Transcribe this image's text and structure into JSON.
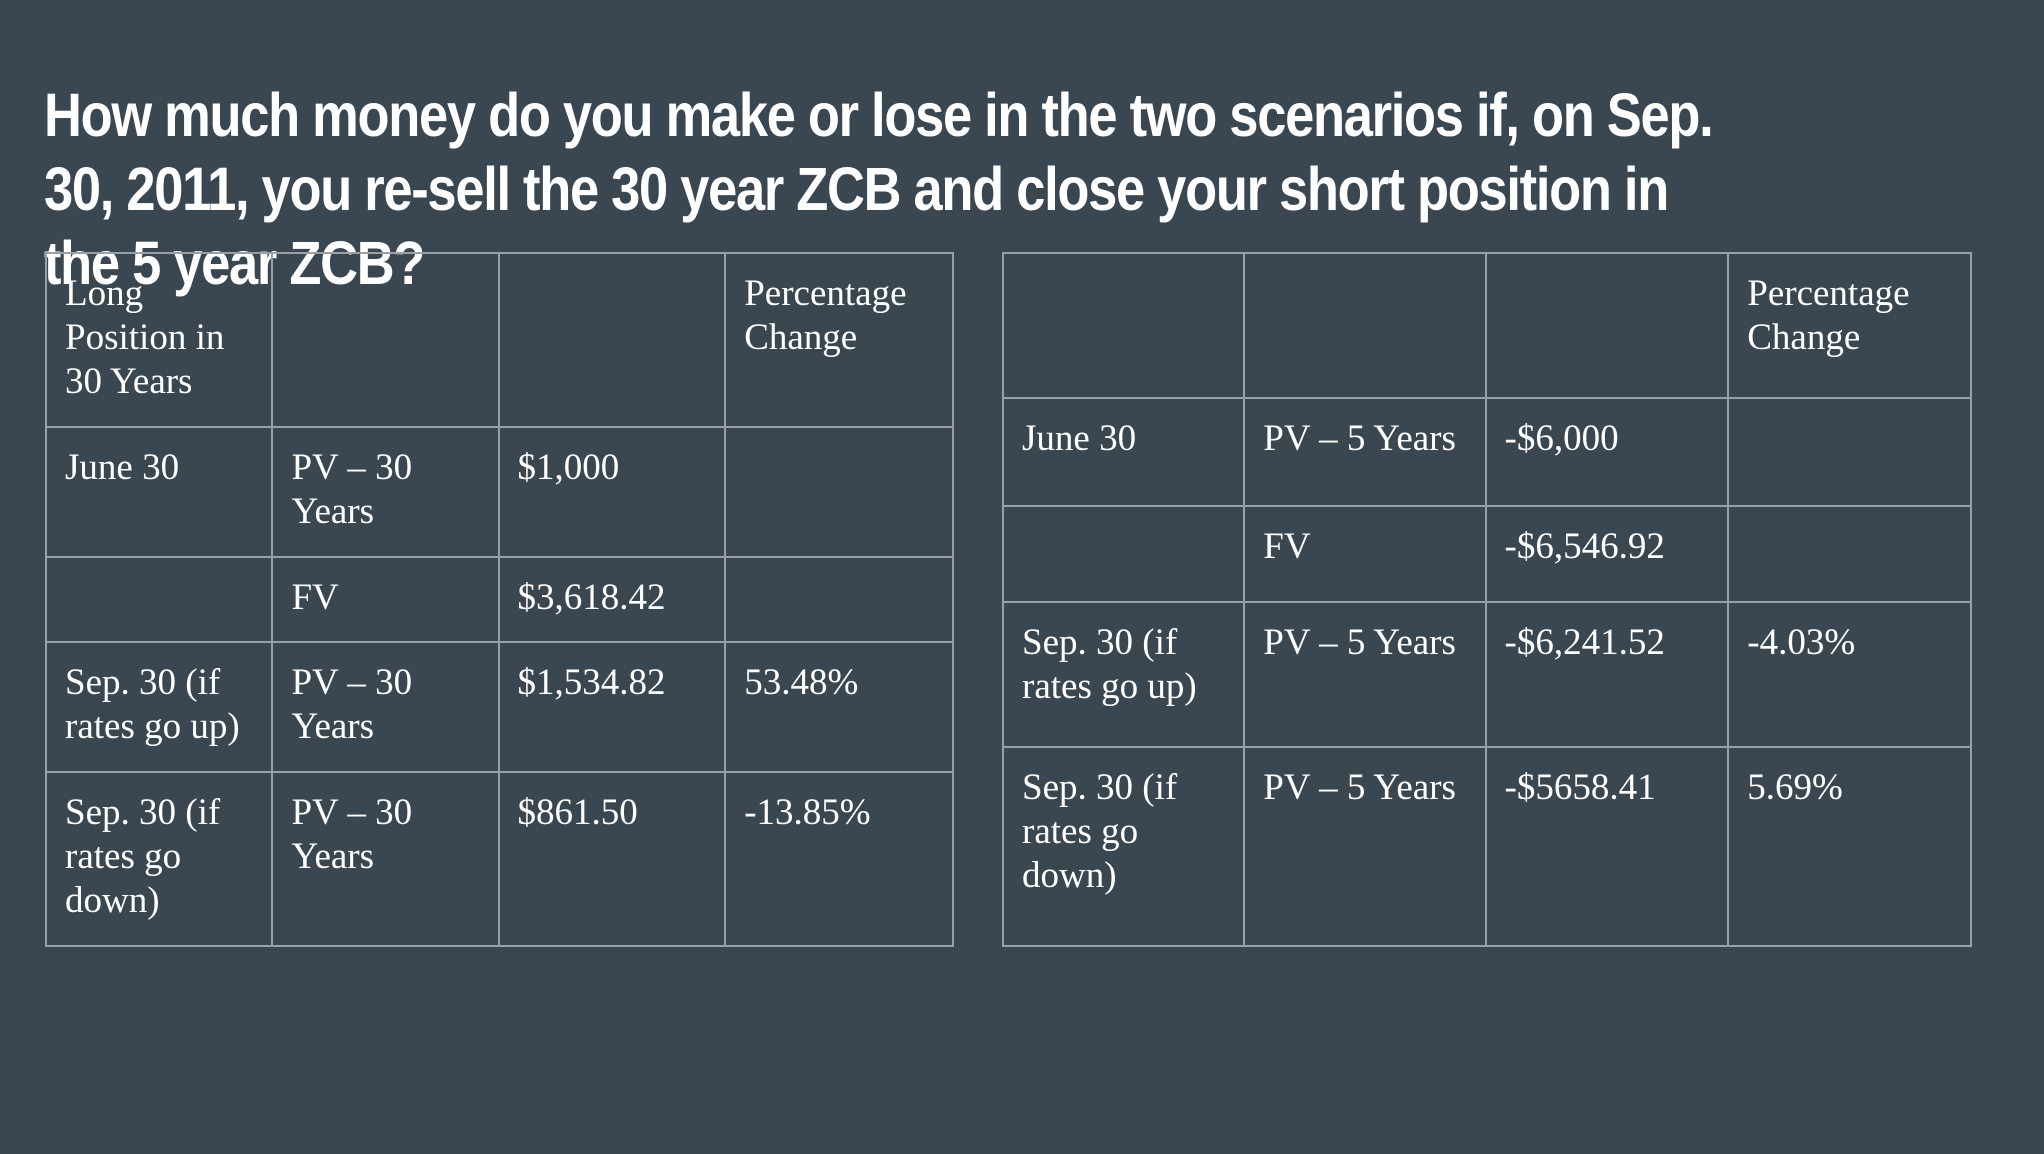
{
  "title": "How much money do you make or lose in the two scenarios if, on Sep. 30, 2011, you re-sell the 30 year ZCB and close your short position in the 5 year ZCB?",
  "left_table": {
    "rows": [
      [
        "Long Position in 30 Years",
        "",
        "",
        "Percentage Change"
      ],
      [
        "June 30",
        "PV – 30 Years",
        "$1,000",
        ""
      ],
      [
        "",
        "FV",
        "$3,618.42",
        ""
      ],
      [
        "Sep. 30 (if rates go up)",
        "PV – 30 Years",
        "$1,534.82",
        "53.48%"
      ],
      [
        "Sep. 30 (if rates go down)",
        "PV – 30 Years",
        "$861.50",
        "-13.85%"
      ]
    ]
  },
  "right_table": {
    "rows": [
      [
        "",
        "",
        "",
        "Percentage Change"
      ],
      [
        "June 30",
        "PV – 5 Years",
        "-$6,000",
        ""
      ],
      [
        "",
        "FV",
        "-$6,546.92",
        ""
      ],
      [
        "Sep. 30 (if rates go up)",
        "PV – 5 Years",
        "-$6,241.52",
        "-4.03%"
      ],
      [
        "Sep. 30 (if rates go down)",
        "PV – 5 Years",
        "-$5658.41",
        "5.69%"
      ]
    ]
  }
}
